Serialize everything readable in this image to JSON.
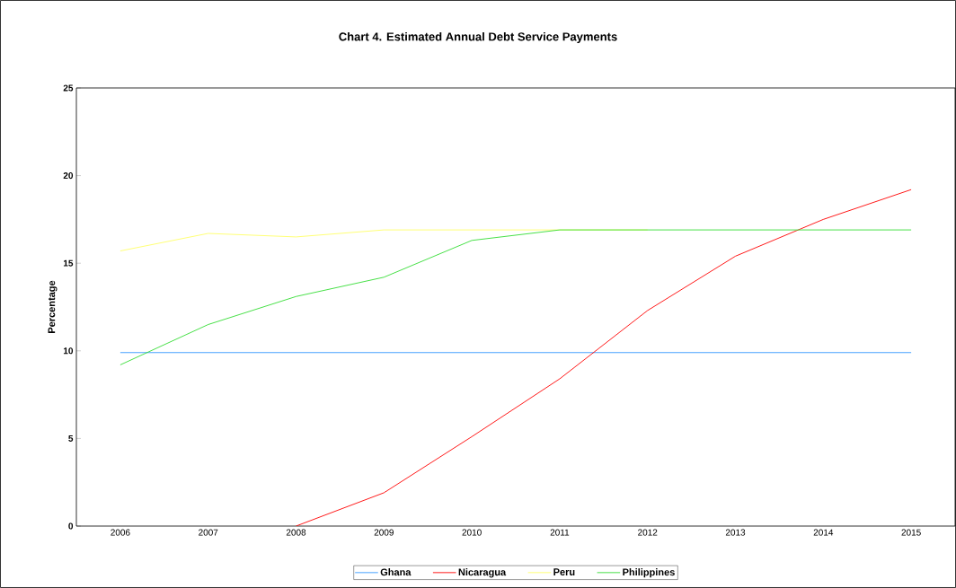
{
  "chart_data": {
    "type": "line",
    "title": "Chart 4. Estimated Annual Debt Service Payments",
    "ylabel": "Percentage",
    "categories": [
      "2006",
      "2007",
      "2008",
      "2009",
      "2010",
      "2011",
      "2012",
      "2013",
      "2014",
      "2015"
    ],
    "series": [
      {
        "name": "Ghana",
        "color": "#3399ff",
        "values": [
          9.9,
          9.9,
          9.9,
          9.9,
          9.9,
          9.9,
          9.9,
          9.9,
          9.9,
          9.9
        ]
      },
      {
        "name": "Nicaragua",
        "color": "#ff0000",
        "values": [
          null,
          null,
          0,
          1.9,
          5.1,
          8.4,
          12.3,
          15.4,
          17.5,
          19.2
        ]
      },
      {
        "name": "Peru",
        "color": "#ffff66",
        "values": [
          15.7,
          16.7,
          16.5,
          16.9,
          16.9,
          16.9,
          16.9,
          null,
          null,
          null
        ]
      },
      {
        "name": "Philippines",
        "color": "#33dd33",
        "values": [
          9.2,
          11.5,
          13.1,
          14.2,
          16.3,
          16.9,
          16.9,
          16.9,
          16.9,
          16.9
        ]
      }
    ],
    "ylim": [
      0,
      25
    ],
    "yticks": [
      0,
      5,
      10,
      15,
      20,
      25
    ],
    "grid": false,
    "legend": "bottom",
    "marker": "none",
    "line_style": "solid"
  }
}
